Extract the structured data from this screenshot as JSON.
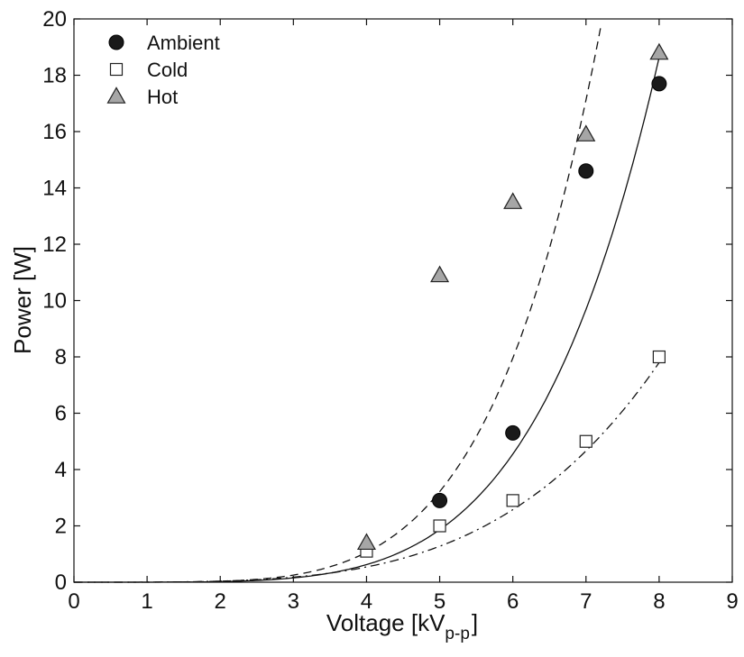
{
  "chart_data": {
    "type": "scatter",
    "xlabel_main": "Voltage [kV",
    "xlabel_sub": "p-p",
    "xlabel_close": "]",
    "ylabel": "Power [W]",
    "xlim": [
      0,
      9
    ],
    "ylim": [
      0,
      20
    ],
    "xticks": [
      "0",
      "1",
      "2",
      "3",
      "4",
      "5",
      "6",
      "7",
      "8",
      "9"
    ],
    "yticks": [
      "0",
      "2",
      "4",
      "6",
      "8",
      "10",
      "12",
      "14",
      "16",
      "18",
      "20"
    ],
    "grid": false,
    "legend_position": "top-left",
    "series": [
      {
        "name": "Ambient",
        "marker": "filled-circle",
        "color": "#1a1a1a",
        "x": [
          5,
          6,
          7,
          8
        ],
        "y": [
          2.9,
          5.3,
          14.6,
          17.7
        ],
        "fit_line": "solid",
        "fit_coeff": 0.0007,
        "fit_exp": 4.9
      },
      {
        "name": "Cold",
        "marker": "open-square",
        "color": "#ffffff",
        "x": [
          4,
          5,
          6,
          7,
          8
        ],
        "y": [
          1.1,
          2.0,
          2.9,
          5.0,
          8.0
        ],
        "fit_line": "dash-dot",
        "fit_coeff": 0.0026,
        "fit_exp": 3.85
      },
      {
        "name": "Hot",
        "marker": "gray-triangle",
        "color": "#a6a6a6",
        "x": [
          4,
          5,
          6,
          7,
          8
        ],
        "y": [
          1.4,
          10.9,
          13.5,
          15.9,
          18.8
        ],
        "fit_line": "dashed",
        "fit_coeff": 0.00108,
        "fit_exp": 4.97
      }
    ]
  }
}
